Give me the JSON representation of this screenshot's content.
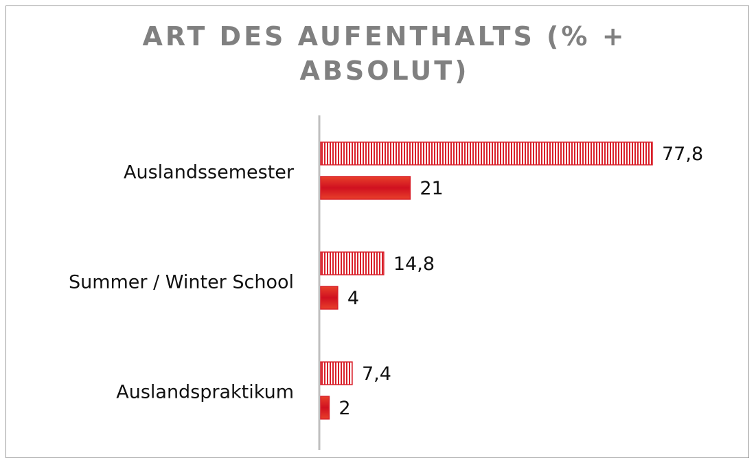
{
  "chart_data": {
    "type": "barh",
    "title": "ART DES AUFENTHALTS (% + ABSOLUT)",
    "categories": [
      "Auslandssemester",
      "Summer / Winter School",
      "Auslandspraktikum"
    ],
    "series": [
      {
        "color": "#d9202a",
        "pattern": "vertical-stripes",
        "values": [
          77.8,
          14.8,
          7.4
        ],
        "value_labels": [
          "77,8",
          "14,8",
          "7,4"
        ]
      },
      {
        "color": "#d9202a",
        "pattern": "solid",
        "values": [
          21,
          4,
          2
        ]
      }
    ]
  }
}
